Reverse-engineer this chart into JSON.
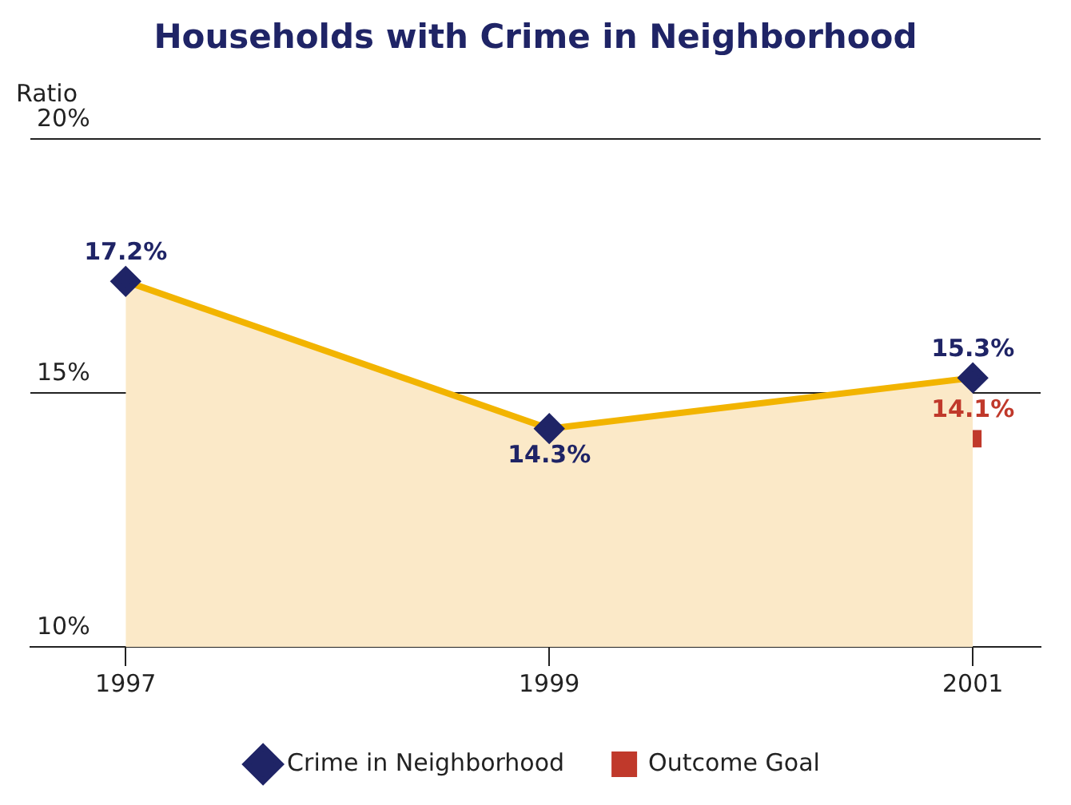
{
  "chart_data": {
    "type": "area",
    "title": "Households with Crime in Neighborhood",
    "ylabel": "Ratio",
    "x": [
      1997,
      1999,
      2001
    ],
    "xlim": [
      1996.55,
      2001.32
    ],
    "xticks": [
      1997,
      1999,
      2001
    ],
    "ylim": [
      10,
      20
    ],
    "yticks": [
      {
        "value": 10,
        "label": "10%"
      },
      {
        "value": 15,
        "label": "15%"
      },
      {
        "value": 20,
        "label": "20%"
      }
    ],
    "grid": "y",
    "legend": "bottom",
    "marker": "diamond",
    "series": [
      {
        "name": "Crime in Neighborhood",
        "type": "area",
        "color": "#f2b400",
        "values": [
          17.2,
          14.3,
          15.3
        ],
        "value_labels": [
          "17.2%",
          "14.3%",
          "15.3%"
        ]
      },
      {
        "name": "Outcome Goal",
        "type": "scatter",
        "marker": "square",
        "color": "#c0392b",
        "x": [
          2001
        ],
        "values": [
          14.1
        ],
        "value_labels": [
          "14.1%"
        ]
      }
    ]
  }
}
